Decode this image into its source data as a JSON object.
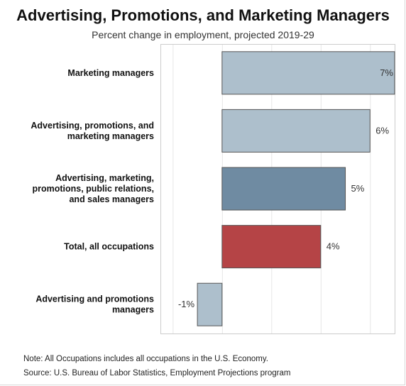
{
  "header": {
    "title": "Advertising, Promotions, and Marketing Managers",
    "subtitle": "Percent change in employment, projected 2019-29"
  },
  "chart_data": {
    "type": "bar",
    "orientation": "horizontal",
    "title": "Advertising, Promotions, and Marketing Managers",
    "subtitle": "Percent change in employment, projected 2019-29",
    "categories": [
      [
        "Marketing managers"
      ],
      [
        "Advertising, promotions, and",
        "marketing managers"
      ],
      [
        "Advertising, marketing,",
        "promotions, public relations,",
        "and sales managers"
      ],
      [
        "Total, all occupations"
      ],
      [
        "Advertising and promotions",
        "managers"
      ]
    ],
    "values": [
      7,
      6,
      5,
      4,
      -1
    ],
    "value_labels": [
      "7%",
      "6%",
      "5%",
      "4%",
      "-1%"
    ],
    "colors": [
      "#adbfcc",
      "#adbfcc",
      "#6f8ba2",
      "#b54446",
      "#adbfcc"
    ],
    "xlim": [
      -2.5,
      7
    ],
    "grid": true,
    "legend": "none"
  },
  "footer": {
    "note": "Note: All Occupations includes all occupations in the U.S. Economy.",
    "source": "Source: U.S. Bureau of Labor Statistics, Employment Projections program"
  }
}
